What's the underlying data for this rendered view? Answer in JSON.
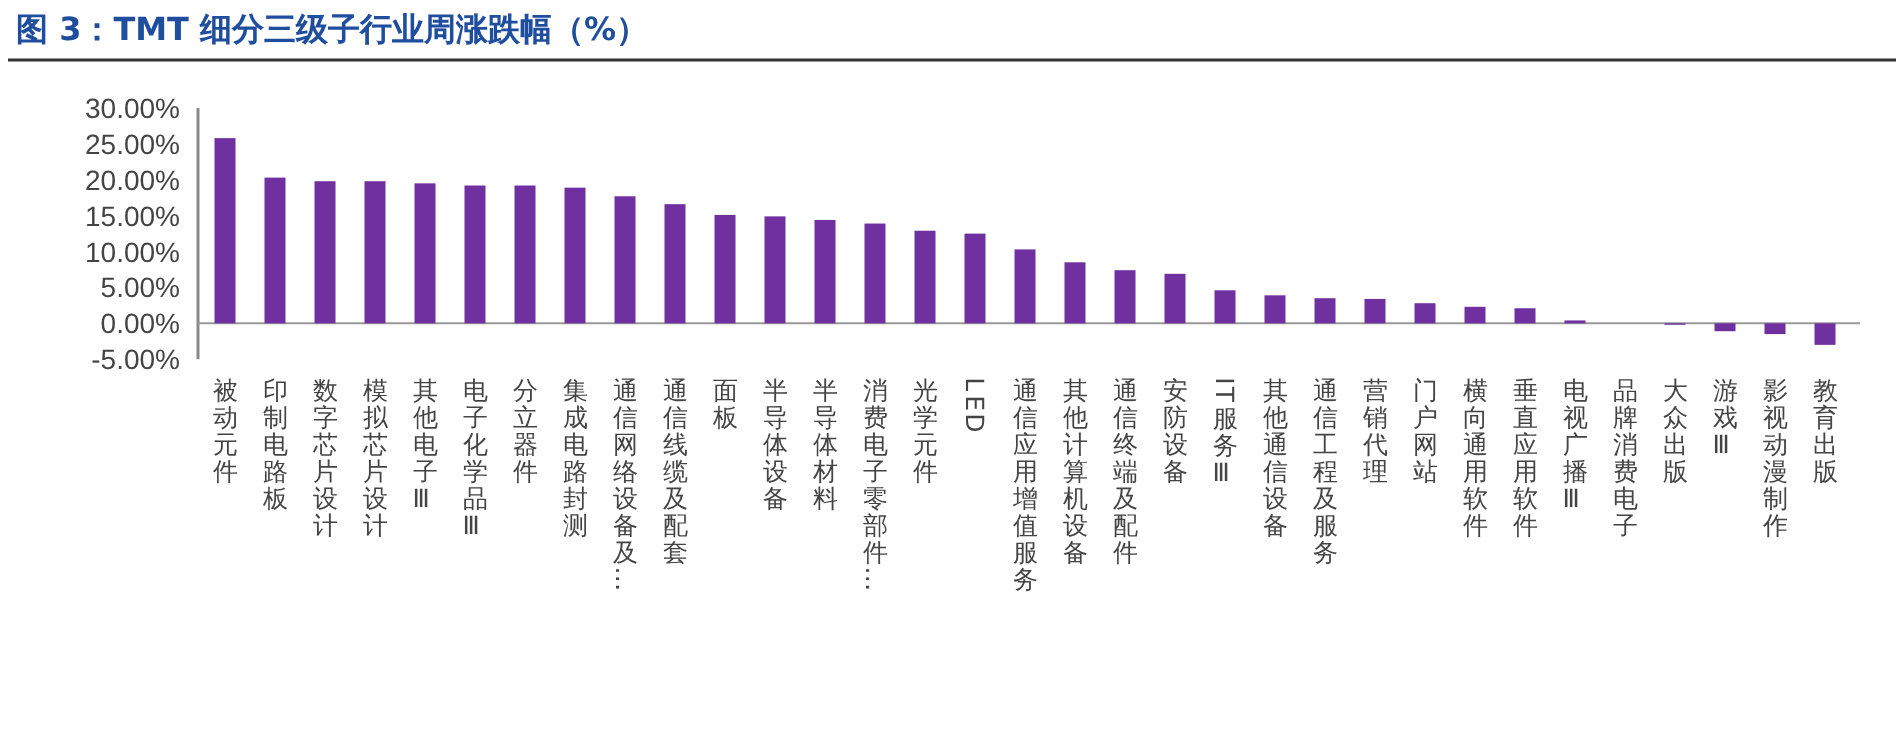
{
  "chart_data": {
    "type": "bar",
    "title": "图 3：TMT 细分三级子行业周涨跌幅（%）",
    "categories": [
      "被动元件",
      "印制电路板",
      "数字芯片设计",
      "模拟芯片设计",
      "其他电子Ⅲ",
      "电子化学品Ⅲ",
      "分立器件",
      "集成电路封测",
      "通信网络设备及…",
      "通信线缆及配套",
      "面板",
      "半导体设备",
      "半导体材料",
      "消费电子零部件…",
      "光学元件",
      "LED",
      "通信应用增值服务",
      "其他计算机设备",
      "通信终端及配件",
      "安防设备",
      "IT服务Ⅲ",
      "其他通信设备",
      "通信工程及服务",
      "营销代理",
      "门户网站",
      "横向通用软件",
      "垂直应用软件",
      "电视广播Ⅲ",
      "品牌消费电子",
      "大众出版",
      "游戏Ⅲ",
      "影视动漫制作",
      "教育出版"
    ],
    "values": [
      25.8,
      20.3,
      19.8,
      19.8,
      19.5,
      19.2,
      19.2,
      18.9,
      17.7,
      16.6,
      15.1,
      14.9,
      14.4,
      13.9,
      12.9,
      12.5,
      10.3,
      8.5,
      7.4,
      6.9,
      4.6,
      3.9,
      3.5,
      3.4,
      2.8,
      2.3,
      2.1,
      0.4,
      0,
      -0.2,
      -1.1,
      -1.5,
      -3.0
    ],
    "color": "#7030a0",
    "ylim": [
      -5,
      30
    ],
    "yticks": [
      {
        "value": 30,
        "label": "30.00%"
      },
      {
        "value": 25,
        "label": "25.00%"
      },
      {
        "value": 20,
        "label": "20.00%"
      },
      {
        "value": 15,
        "label": "15.00%"
      },
      {
        "value": 10,
        "label": "10.00%"
      },
      {
        "value": 5,
        "label": "5.00%"
      },
      {
        "value": 0,
        "label": "0.00%"
      },
      {
        "value": -5,
        "label": "-5.00%"
      }
    ],
    "grid": false,
    "legend": false
  }
}
